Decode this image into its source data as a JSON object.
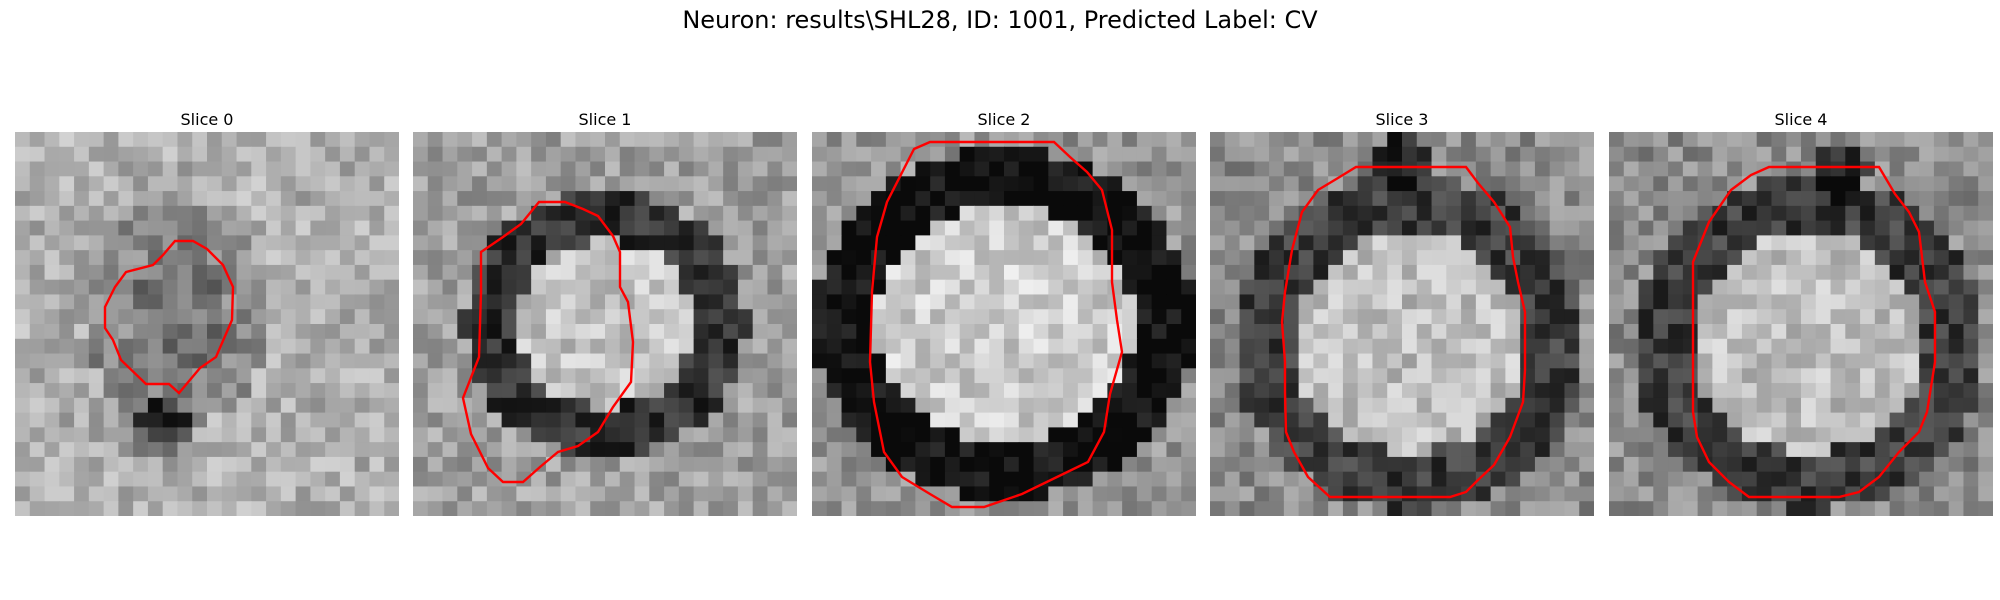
{
  "figure": {
    "title": "Neuron: results\\SHL28, ID: 1001, Predicted Label: CV"
  },
  "palette": {
    "contour": "#ff0000"
  },
  "panels": [
    {
      "title": "Slice 0",
      "image": "grayscale micrograph patch with a small dark roundish structure at center; red contour outlines it"
    },
    {
      "title": "Slice 1",
      "image": "grayscale micrograph patch with a dark-ringed vesicle with bright interior; red contour outlines it"
    },
    {
      "title": "Slice 2",
      "image": "grayscale micrograph patch with a large bright oval vesicle ringed by a dark membrane; red contour outlines it"
    },
    {
      "title": "Slice 3",
      "image": "grayscale micrograph patch with a bright roundish vesicle; red contour outlines it"
    },
    {
      "title": "Slice 4",
      "image": "grayscale micrograph patch with a bright roundish vesicle; red contour outlines it"
    }
  ]
}
